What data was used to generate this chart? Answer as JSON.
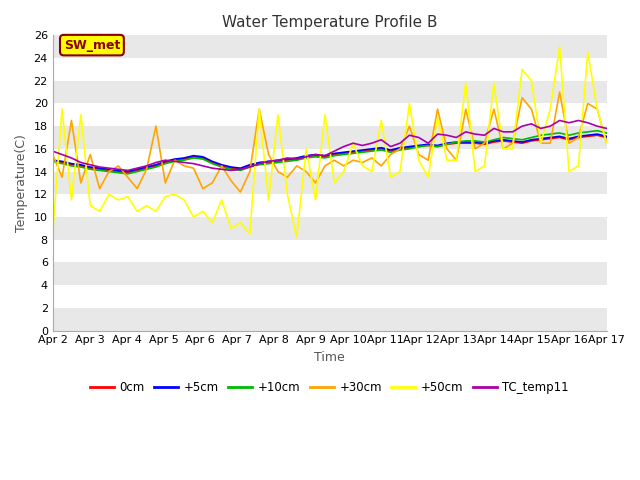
{
  "title": "Water Temperature Profile B",
  "xlabel": "Time",
  "ylabel": "Temperature(C)",
  "ylim": [
    0,
    26
  ],
  "yticks": [
    0,
    2,
    4,
    6,
    8,
    10,
    12,
    14,
    16,
    18,
    20,
    22,
    24,
    26
  ],
  "days": 15,
  "annotation_label": "SW_met",
  "annotation_color": "#8B0000",
  "annotation_bg": "#FFFF00",
  "series": {
    "0cm": {
      "color": "#FF0000",
      "values": [
        15.0,
        14.8,
        14.6,
        14.5,
        14.3,
        14.2,
        14.1,
        14.0,
        13.9,
        14.1,
        14.3,
        14.5,
        14.8,
        15.0,
        15.1,
        15.3,
        15.2,
        14.8,
        14.5,
        14.3,
        14.2,
        14.5,
        14.7,
        14.8,
        14.9,
        15.0,
        15.1,
        15.3,
        15.4,
        15.3,
        15.5,
        15.6,
        15.7,
        15.8,
        15.9,
        16.0,
        15.8,
        16.0,
        16.1,
        16.2,
        16.3,
        16.2,
        16.4,
        16.5,
        16.5,
        16.5,
        16.4,
        16.6,
        16.7,
        16.6,
        16.5,
        16.7,
        16.8,
        16.9,
        17.0,
        16.8,
        17.0,
        17.1,
        17.2,
        17.0
      ]
    },
    "+5cm": {
      "color": "#0000FF",
      "values": [
        15.0,
        14.9,
        14.7,
        14.6,
        14.4,
        14.3,
        14.2,
        14.1,
        14.0,
        14.2,
        14.4,
        14.6,
        14.9,
        15.1,
        15.2,
        15.4,
        15.3,
        14.9,
        14.6,
        14.4,
        14.3,
        14.6,
        14.8,
        14.9,
        15.0,
        15.1,
        15.2,
        15.4,
        15.5,
        15.4,
        15.6,
        15.7,
        15.8,
        15.9,
        16.0,
        16.1,
        15.9,
        16.1,
        16.2,
        16.3,
        16.4,
        16.3,
        16.5,
        16.6,
        16.6,
        16.6,
        16.5,
        16.7,
        16.8,
        16.7,
        16.6,
        16.8,
        16.9,
        17.0,
        17.1,
        16.9,
        17.1,
        17.2,
        17.3,
        17.1
      ]
    },
    "+10cm": {
      "color": "#00BB00",
      "values": [
        14.9,
        14.7,
        14.5,
        14.4,
        14.2,
        14.1,
        14.0,
        13.9,
        13.8,
        14.0,
        14.2,
        14.4,
        14.7,
        14.9,
        15.0,
        15.2,
        15.1,
        14.7,
        14.4,
        14.2,
        14.1,
        14.4,
        14.6,
        14.7,
        14.8,
        14.9,
        15.0,
        15.2,
        15.3,
        15.2,
        15.4,
        15.5,
        15.6,
        15.7,
        15.8,
        15.9,
        15.7,
        15.9,
        16.0,
        16.2,
        16.3,
        16.2,
        16.4,
        16.6,
        16.7,
        16.7,
        16.6,
        16.8,
        17.0,
        16.9,
        16.8,
        17.0,
        17.2,
        17.3,
        17.4,
        17.2,
        17.4,
        17.5,
        17.6,
        17.4
      ]
    },
    "+30cm": {
      "color": "#FFA500",
      "values": [
        15.5,
        13.5,
        18.5,
        13.0,
        15.5,
        12.5,
        14.0,
        14.5,
        13.5,
        12.5,
        14.2,
        18.0,
        13.0,
        15.0,
        14.5,
        14.3,
        12.5,
        13.0,
        14.5,
        13.2,
        12.2,
        14.0,
        19.5,
        15.5,
        14.0,
        13.5,
        14.5,
        14.0,
        13.0,
        14.5,
        15.0,
        14.5,
        15.0,
        14.8,
        15.2,
        14.5,
        15.5,
        16.0,
        18.0,
        15.5,
        15.0,
        19.5,
        16.0,
        15.0,
        19.5,
        16.0,
        16.5,
        19.5,
        16.0,
        16.5,
        20.5,
        19.5,
        16.5,
        16.5,
        21.0,
        16.5,
        17.0,
        20.0,
        19.5,
        16.5
      ]
    },
    "+50cm": {
      "color": "#FFFF00",
      "values": [
        8.5,
        19.5,
        11.5,
        19.0,
        11.0,
        10.5,
        12.0,
        11.5,
        11.8,
        10.5,
        11.0,
        10.5,
        11.8,
        12.0,
        11.5,
        10.0,
        10.5,
        9.5,
        11.5,
        9.0,
        9.5,
        8.5,
        19.5,
        11.5,
        19.0,
        12.0,
        8.2,
        16.0,
        11.5,
        19.0,
        13.0,
        14.0,
        16.5,
        14.5,
        14.0,
        18.5,
        13.5,
        14.0,
        20.0,
        15.0,
        13.5,
        18.8,
        15.0,
        15.0,
        21.8,
        14.0,
        14.5,
        21.8,
        16.0,
        16.0,
        23.0,
        22.0,
        16.5,
        19.5,
        25.0,
        14.0,
        14.5,
        24.5,
        19.5,
        16.5
      ]
    },
    "TC_temp11": {
      "color": "#AA00AA",
      "values": [
        15.8,
        15.5,
        15.2,
        14.8,
        14.6,
        14.4,
        14.3,
        14.2,
        14.1,
        14.3,
        14.5,
        14.8,
        15.0,
        14.9,
        14.8,
        14.7,
        14.5,
        14.3,
        14.2,
        14.1,
        14.2,
        14.4,
        14.7,
        14.9,
        15.0,
        15.2,
        15.1,
        15.3,
        15.5,
        15.4,
        15.8,
        16.2,
        16.5,
        16.3,
        16.5,
        16.8,
        16.2,
        16.5,
        17.2,
        17.0,
        16.5,
        17.3,
        17.2,
        17.0,
        17.5,
        17.3,
        17.2,
        17.8,
        17.5,
        17.5,
        18.0,
        18.2,
        17.8,
        18.0,
        18.5,
        18.3,
        18.5,
        18.3,
        18.0,
        17.8
      ]
    }
  },
  "xtick_labels": [
    "Apr 2",
    "Apr 3",
    "Apr 4",
    "Apr 5",
    "Apr 6",
    "Apr 7",
    "Apr 8",
    "Apr 9",
    "Apr 10",
    "Apr 11",
    "Apr 12",
    "Apr 13",
    "Apr 14",
    "Apr 15",
    "Apr 16",
    "Apr 17"
  ],
  "fig_bg_color": "#FFFFFF",
  "plot_bg_color": "#FFFFFF",
  "band_colors": [
    "#E8E8E8",
    "#FFFFFF"
  ],
  "linewidth": 1.2,
  "title_fontsize": 11,
  "tick_fontsize": 8,
  "axis_label_fontsize": 9
}
